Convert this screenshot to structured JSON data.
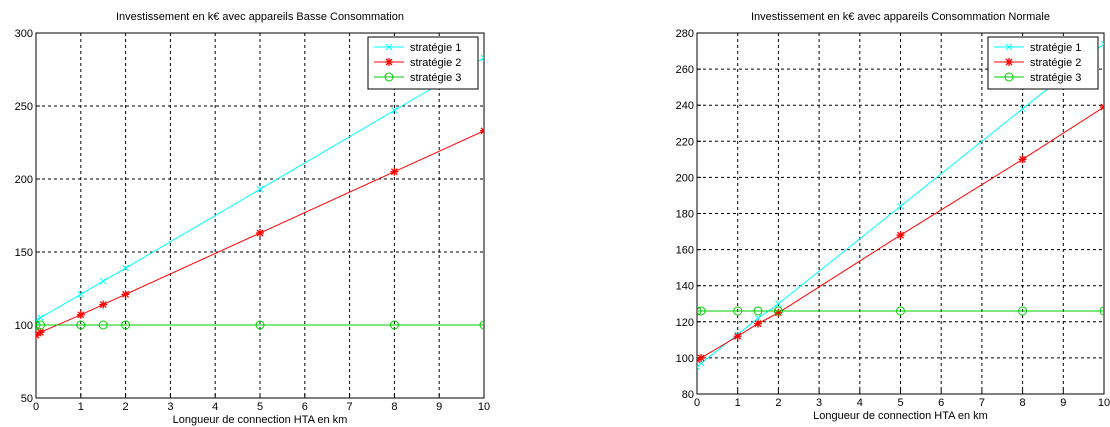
{
  "chart_data": [
    {
      "type": "line",
      "title": "Investissement en k€ avec appareils Basse Consommation",
      "xlabel": "Longueur de connection HTA en km",
      "ylabel": "",
      "xlim": [
        0,
        10
      ],
      "ylim": [
        50,
        300
      ],
      "xticks": [
        "0",
        "1",
        "2",
        "3",
        "4",
        "5",
        "6",
        "7",
        "8",
        "9",
        "10"
      ],
      "yticks": [
        "50",
        "100",
        "150",
        "200",
        "250",
        "300"
      ],
      "grid": true,
      "legend": "top-right",
      "series": [
        {
          "name": "stratégie 1",
          "color": "#00ffff",
          "marker": "x",
          "x": [
            0,
            0.1,
            1,
            1.5,
            2,
            5,
            8,
            10
          ],
          "y": [
            103,
            105,
            121,
            130,
            139,
            193,
            247,
            283
          ]
        },
        {
          "name": "stratégie 2",
          "color": "#ff0000",
          "marker": "star",
          "x": [
            0,
            0.1,
            1,
            1.5,
            2,
            5,
            8,
            10
          ],
          "y": [
            93,
            95,
            107,
            114,
            121,
            163,
            205,
            233
          ]
        },
        {
          "name": "stratégie 3",
          "color": "#00cc00",
          "marker": "circle",
          "x": [
            0,
            0.1,
            1,
            1.5,
            2,
            5,
            8,
            10
          ],
          "y": [
            100,
            100,
            100,
            100,
            100,
            100,
            100,
            100
          ]
        }
      ]
    },
    {
      "type": "line",
      "title": "Investissement en k€ avec appareils  Consommation Normale",
      "xlabel": "Longueur de connection HTA en km",
      "ylabel": "",
      "xlim": [
        0,
        10
      ],
      "ylim": [
        80,
        280
      ],
      "xticks": [
        "0",
        "1",
        "2",
        "3",
        "4",
        "5",
        "6",
        "7",
        "8",
        "9",
        "10"
      ],
      "yticks": [
        "80",
        "100",
        "120",
        "140",
        "160",
        "180",
        "200",
        "220",
        "240",
        "260",
        "280"
      ],
      "grid": true,
      "legend": "top-right",
      "series": [
        {
          "name": "stratégie 1",
          "color": "#00ffff",
          "marker": "x",
          "x": [
            0,
            0.1,
            1,
            1.5,
            2,
            5,
            8,
            10
          ],
          "y": [
            95,
            97,
            113,
            122,
            130,
            184,
            238,
            274
          ]
        },
        {
          "name": "stratégie 2",
          "color": "#ff0000",
          "marker": "star",
          "x": [
            0,
            0.1,
            1,
            1.5,
            2,
            5,
            8,
            10
          ],
          "y": [
            99,
            100,
            112,
            119,
            125,
            168,
            210,
            239
          ]
        },
        {
          "name": "stratégie 3",
          "color": "#00cc00",
          "marker": "circle",
          "x": [
            0,
            0.1,
            1,
            1.5,
            2,
            5,
            8,
            10
          ],
          "y": [
            126,
            126,
            126,
            126,
            126,
            126,
            126,
            126
          ]
        }
      ]
    }
  ]
}
